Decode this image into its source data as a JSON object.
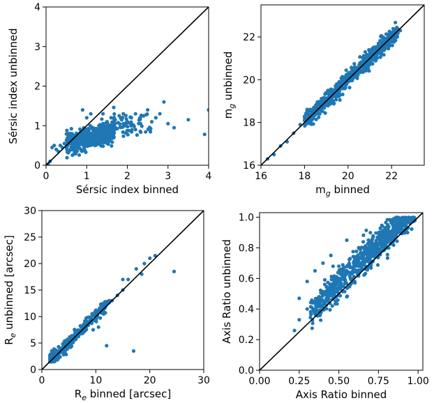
{
  "chart_data": [
    {
      "type": "scatter",
      "xlabel": "Sérsic index binned",
      "ylabel": "Sérsic index unbinned",
      "xlim": [
        0,
        4
      ],
      "ylim": [
        0,
        4
      ],
      "xticks": [
        "0",
        "1",
        "2",
        "3",
        "4"
      ],
      "yticks": [
        "0",
        "1",
        "2",
        "3",
        "4"
      ],
      "xtick_values": [
        0,
        1,
        2,
        3,
        4
      ],
      "ytick_values": [
        0,
        1,
        2,
        3,
        4
      ],
      "reference_line": "y = x",
      "marker_color": "#1f77b4",
      "line_color": "#000000",
      "points": [
        [
          0.05,
          0.03
        ],
        [
          0.1,
          0.1
        ],
        [
          0.15,
          0.45
        ],
        [
          0.2,
          0.5
        ],
        [
          0.25,
          0.4
        ],
        [
          0.3,
          0.35
        ],
        [
          0.35,
          0.5
        ],
        [
          0.4,
          0.45
        ],
        [
          0.45,
          0.55
        ],
        [
          0.5,
          0.5
        ],
        [
          0.55,
          0.6
        ],
        [
          0.6,
          0.65
        ],
        [
          0.65,
          0.55
        ],
        [
          0.7,
          0.7
        ],
        [
          0.75,
          0.65
        ],
        [
          0.8,
          0.75
        ],
        [
          0.85,
          0.8
        ],
        [
          0.9,
          0.7
        ],
        [
          0.95,
          0.85
        ],
        [
          1.0,
          0.8
        ],
        [
          1.05,
          0.9
        ],
        [
          1.1,
          0.75
        ],
        [
          1.15,
          0.95
        ],
        [
          1.2,
          0.85
        ],
        [
          1.25,
          0.9
        ],
        [
          1.3,
          1.0
        ],
        [
          1.35,
          0.95
        ],
        [
          1.4,
          1.05
        ],
        [
          1.5,
          1.1
        ],
        [
          1.6,
          1.2
        ],
        [
          1.7,
          1.15
        ],
        [
          1.8,
          1.25
        ],
        [
          1.9,
          1.3
        ],
        [
          2.0,
          1.1
        ],
        [
          2.1,
          1.2
        ],
        [
          2.2,
          1.3
        ],
        [
          2.4,
          1.25
        ],
        [
          2.6,
          1.1
        ],
        [
          2.8,
          1.3
        ],
        [
          3.0,
          1.05
        ],
        [
          3.15,
          0.95
        ],
        [
          3.5,
          1.15
        ],
        [
          3.9,
          0.78
        ],
        [
          4.0,
          1.4
        ],
        [
          0.9,
          1.4
        ],
        [
          1.0,
          1.2
        ],
        [
          1.1,
          1.3
        ],
        [
          0.8,
          0.6
        ],
        [
          0.7,
          0.5
        ],
        [
          1.3,
          0.7
        ],
        [
          1.5,
          0.85
        ],
        [
          1.2,
          0.6
        ],
        [
          2.5,
          1.4
        ],
        [
          2.9,
          1.6
        ],
        [
          2.2,
          0.9
        ],
        [
          1.9,
          1.05
        ],
        [
          2.7,
          1.2
        ],
        [
          0.6,
          0.4
        ],
        [
          1.4,
          1.3
        ],
        [
          1.6,
          0.9
        ]
      ],
      "cluster_seed": 1
    },
    {
      "type": "scatter",
      "xlabel": "m_g binned",
      "ylabel": "m_g unbinned",
      "xlabel_text": "m",
      "xlabel_sub": "g",
      "xlabel_rest": " binned",
      "ylabel_text": "m",
      "ylabel_sub": "g",
      "ylabel_rest": " unbinned",
      "xlim": [
        16,
        23.5
      ],
      "ylim": [
        16,
        23.5
      ],
      "xticks": [
        "16",
        "18",
        "20",
        "22"
      ],
      "yticks": [
        "16",
        "18",
        "20",
        "22"
      ],
      "xtick_values": [
        16,
        18,
        20,
        22
      ],
      "ytick_values": [
        16,
        18,
        20,
        22
      ],
      "reference_line": "y = x",
      "marker_color": "#1f77b4",
      "line_color": "#000000",
      "points": [
        [
          16.3,
          16.3
        ],
        [
          16.6,
          16.5
        ],
        [
          16.9,
          16.9
        ],
        [
          17.2,
          17.1
        ],
        [
          17.5,
          17.5
        ],
        [
          17.8,
          17.9
        ],
        [
          18.0,
          18.1
        ],
        [
          18.3,
          18.2
        ],
        [
          18.6,
          18.7
        ],
        [
          18.9,
          18.9
        ],
        [
          19.2,
          19.3
        ],
        [
          19.5,
          19.4
        ],
        [
          19.8,
          19.9
        ],
        [
          20.1,
          20.0
        ],
        [
          20.4,
          20.5
        ],
        [
          20.7,
          20.6
        ],
        [
          21.0,
          21.1
        ],
        [
          21.3,
          21.2
        ],
        [
          21.6,
          21.7
        ],
        [
          21.9,
          21.8
        ],
        [
          22.2,
          22.3
        ],
        [
          22.4,
          22.3
        ]
      ],
      "cluster_seed": 2
    },
    {
      "type": "scatter",
      "xlabel": "R_e binned [arcsec]",
      "ylabel": "R_e unbinned [arcsec]",
      "xlabel_text": "R",
      "xlabel_sub": "e",
      "xlabel_rest": " binned [arcsec]",
      "ylabel_text": "R",
      "ylabel_sub": "e",
      "ylabel_rest": " unbinned [arcsec]",
      "xlim": [
        0,
        30
      ],
      "ylim": [
        0,
        30
      ],
      "xticks": [
        "0",
        "10",
        "20",
        "30"
      ],
      "yticks": [
        "0",
        "5",
        "10",
        "15",
        "20",
        "25",
        "30"
      ],
      "xtick_values": [
        0,
        10,
        20,
        30
      ],
      "ytick_values": [
        0,
        5,
        10,
        15,
        20,
        25,
        30
      ],
      "reference_line": "y = x",
      "marker_color": "#1f77b4",
      "line_color": "#000000",
      "points": [
        [
          1.5,
          2.0
        ],
        [
          2.0,
          2.5
        ],
        [
          3.0,
          3.0
        ],
        [
          4.0,
          4.5
        ],
        [
          5.0,
          5.0
        ],
        [
          6.0,
          6.5
        ],
        [
          7.0,
          7.0
        ],
        [
          8.0,
          8.5
        ],
        [
          9.0,
          9.0
        ],
        [
          10.0,
          11.0
        ],
        [
          11.0,
          12.0
        ],
        [
          12.0,
          4.5
        ],
        [
          13.0,
          13.0
        ],
        [
          14.0,
          14.0
        ],
        [
          15.0,
          17.0
        ],
        [
          16.0,
          17.0
        ],
        [
          17.0,
          3.5
        ],
        [
          17.5,
          19.0
        ],
        [
          18.5,
          18.0
        ],
        [
          19.0,
          20.0
        ],
        [
          20.0,
          21.0
        ],
        [
          21.0,
          21.5
        ],
        [
          24.5,
          18.5
        ],
        [
          12.5,
          13.0
        ],
        [
          11.5,
          10.5
        ],
        [
          10.5,
          8.0
        ],
        [
          9.5,
          7.5
        ],
        [
          15.0,
          15.0
        ]
      ],
      "cluster_seed": 3
    },
    {
      "type": "scatter",
      "xlabel": "Axis Ratio binned",
      "ylabel": "Axis Ratio unbinned",
      "xlim": [
        0,
        1.03
      ],
      "ylim": [
        0,
        1.03
      ],
      "xticks": [
        "0.00",
        "0.25",
        "0.50",
        "0.75",
        "1.00"
      ],
      "yticks": [
        "0.0",
        "0.2",
        "0.4",
        "0.6",
        "0.8",
        "1.0"
      ],
      "xtick_values": [
        0,
        0.25,
        0.5,
        0.75,
        1.0
      ],
      "ytick_values": [
        0,
        0.2,
        0.4,
        0.6,
        0.8,
        1.0
      ],
      "reference_line": "y = x",
      "marker_color": "#1f77b4",
      "line_color": "#000000",
      "points": [
        [
          0.22,
          0.26
        ],
        [
          0.25,
          0.33
        ],
        [
          0.3,
          0.4
        ],
        [
          0.35,
          0.45
        ],
        [
          0.4,
          0.5
        ],
        [
          0.45,
          0.55
        ],
        [
          0.5,
          0.6
        ],
        [
          0.55,
          0.65
        ],
        [
          0.6,
          0.7
        ],
        [
          0.65,
          0.73
        ],
        [
          0.7,
          0.78
        ],
        [
          0.75,
          0.82
        ],
        [
          0.8,
          0.85
        ],
        [
          0.85,
          0.88
        ],
        [
          0.9,
          0.92
        ],
        [
          0.95,
          0.96
        ],
        [
          0.98,
          0.98
        ],
        [
          0.3,
          0.58
        ],
        [
          0.35,
          0.65
        ],
        [
          0.4,
          0.7
        ],
        [
          0.5,
          0.55
        ],
        [
          0.55,
          0.48
        ],
        [
          0.6,
          0.58
        ],
        [
          0.7,
          0.68
        ],
        [
          0.45,
          0.75
        ],
        [
          0.55,
          0.85
        ],
        [
          0.85,
          0.97
        ],
        [
          0.25,
          0.47
        ]
      ],
      "cluster_seed": 4
    }
  ]
}
